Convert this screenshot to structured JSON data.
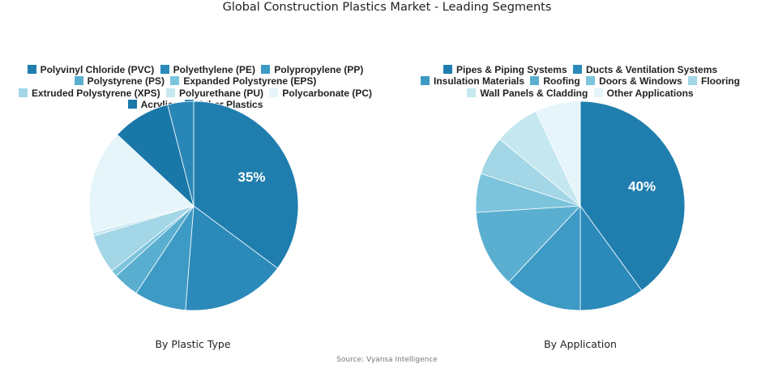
{
  "title": "Global Construction Plastics Market - Leading Segments",
  "source": "Source: Vyansa Intelligence",
  "chart_data": [
    {
      "type": "pie",
      "caption": "By Plastic Type",
      "start_angle_deg": 0,
      "direction": "clockwise",
      "data_labels": [
        "35%"
      ],
      "series": [
        {
          "name": "Polyvinyl Chloride (PVC)",
          "value": 35,
          "color": "#1f7eae"
        },
        {
          "name": "Polyethylene (PE)",
          "value": 16,
          "color": "#2b8aba"
        },
        {
          "name": "Polypropylene (PP)",
          "value": 8,
          "color": "#3d9ac4"
        },
        {
          "name": "Polystyrene (PS)",
          "value": 4,
          "color": "#5aafd0"
        },
        {
          "name": "Expanded Polystyrene (EPS)",
          "value": 1,
          "color": "#7cc3dc"
        },
        {
          "name": "Extruded Polystyrene (XPS)",
          "value": 6,
          "color": "#a3d6e6"
        },
        {
          "name": "Polyurethane (PU)",
          "value": 0.5,
          "color": "#c5e7f0"
        },
        {
          "name": "Polycarbonate (PC)",
          "value": 16,
          "color": "#e5f5fa"
        },
        {
          "name": "Acrylics",
          "value": 9,
          "color": "#1a78a8"
        },
        {
          "name": "Other Plastics",
          "value": 4,
          "color": "#2987b8"
        }
      ]
    },
    {
      "type": "pie",
      "caption": "By Application",
      "start_angle_deg": 0,
      "direction": "clockwise",
      "data_labels": [
        "40%"
      ],
      "series": [
        {
          "name": "Pipes & Piping Systems",
          "value": 40,
          "color": "#1f7eae"
        },
        {
          "name": "Ducts & Ventilation Systems",
          "value": 10,
          "color": "#2b8aba"
        },
        {
          "name": "Insulation Materials",
          "value": 12,
          "color": "#3d9ac4"
        },
        {
          "name": "Roofing",
          "value": 12,
          "color": "#5aafd0"
        },
        {
          "name": "Doors & Windows",
          "value": 6,
          "color": "#7cc3dc"
        },
        {
          "name": "Flooring",
          "value": 6,
          "color": "#a3d6e6"
        },
        {
          "name": "Wall Panels & Cladding",
          "value": 7,
          "color": "#c5e7f0"
        },
        {
          "name": "Other Applications",
          "value": 7,
          "color": "#e5f5fa"
        }
      ]
    }
  ]
}
